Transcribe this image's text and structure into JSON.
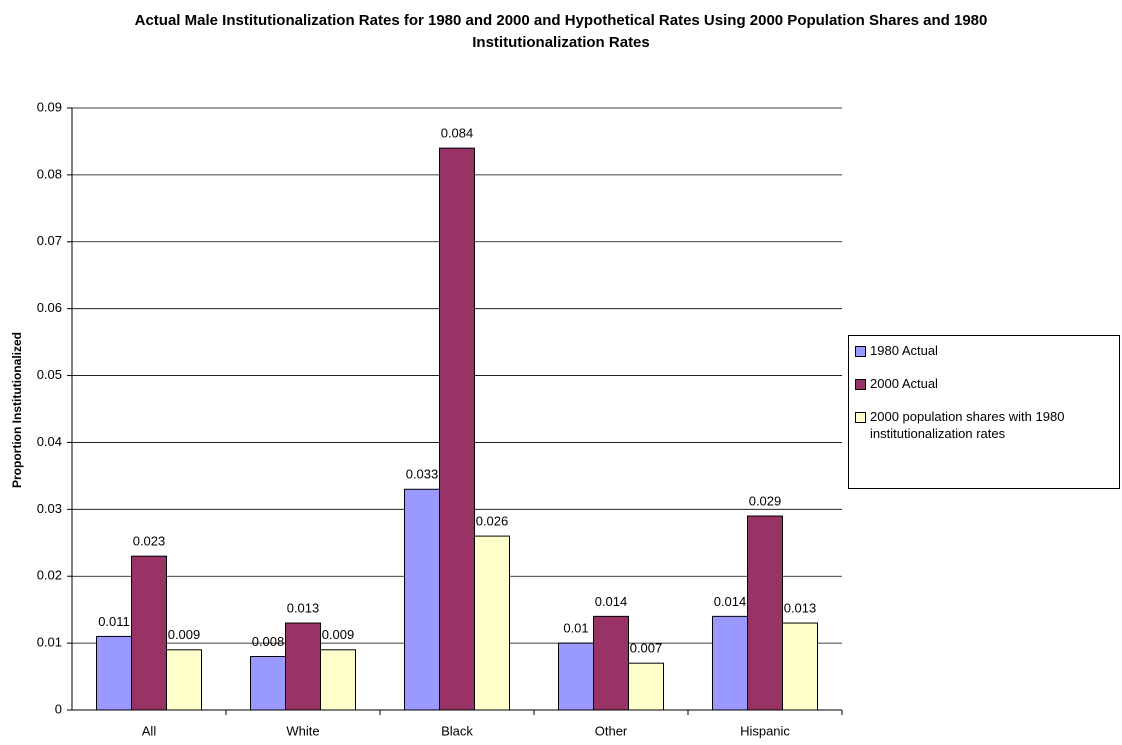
{
  "chart_data": {
    "type": "bar",
    "title": "Actual Male Institutionalization Rates for 1980 and 2000 and Hypothetical Rates Using 2000 Population Shares and 1980 Institutionalization Rates",
    "y_label": "Proportion Institutionalized",
    "categories": [
      "All",
      "White",
      "Black",
      "Other",
      "Hispanic"
    ],
    "series": [
      {
        "name": "1980 Actual",
        "color": "#9999ff",
        "values": [
          0.011,
          0.008,
          0.033,
          0.01,
          0.014
        ]
      },
      {
        "name": "2000 Actual",
        "color": "#993366",
        "values": [
          0.023,
          0.013,
          0.084,
          0.014,
          0.029
        ]
      },
      {
        "name": "2000 population shares with 1980 institutionalization rates",
        "color": "#ffffcc",
        "values": [
          0.009,
          0.009,
          0.026,
          0.007,
          0.013
        ]
      }
    ],
    "ylim": [
      0,
      0.09
    ],
    "yticks": [
      0,
      0.01,
      0.02,
      0.03,
      0.04,
      0.05,
      0.06,
      0.07,
      0.08,
      0.09
    ],
    "grid": true,
    "legend": "right"
  }
}
